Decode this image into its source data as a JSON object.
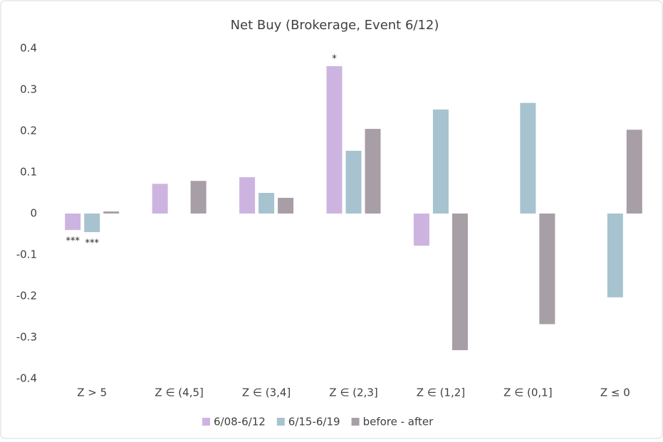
{
  "chart_data": {
    "type": "bar",
    "title": "Net Buy (Brokerage, Event 6/12)",
    "categories": [
      "Z > 5",
      "Z ∈ (4,5]",
      "Z ∈ (3,4]",
      "Z ∈ (2,3]",
      "Z ∈ (1,2]",
      "Z ∈ (0,1]",
      "Z ≤ 0"
    ],
    "series": [
      {
        "name": "6/08-6/12",
        "color": "#cdb4e0",
        "values": [
          -0.04,
          0.072,
          0.088,
          0.357,
          -0.078,
          null,
          null
        ]
      },
      {
        "name": "6/15-6/19",
        "color": "#a6c3cf",
        "values": [
          -0.045,
          null,
          0.05,
          0.152,
          0.252,
          0.268,
          -0.203
        ]
      },
      {
        "name": "before - after",
        "color": "#a89ea6",
        "values": [
          0.005,
          0.079,
          0.038,
          0.205,
          -0.331,
          -0.268,
          0.203
        ]
      }
    ],
    "annotations": [
      {
        "text": "***",
        "category": "Z > 5",
        "series": "6/08-6/12"
      },
      {
        "text": "***",
        "category": "Z > 5",
        "series": "6/15-6/19"
      },
      {
        "text": "*",
        "category": "Z ∈ (2,3]",
        "series": "6/08-6/12"
      }
    ],
    "ylim": [
      -0.4,
      0.4
    ],
    "yticks": [
      -0.4,
      -0.3,
      -0.2,
      -0.1,
      0,
      0.1,
      0.2,
      0.3,
      0.4
    ],
    "grid": false,
    "legend": "bottom"
  }
}
